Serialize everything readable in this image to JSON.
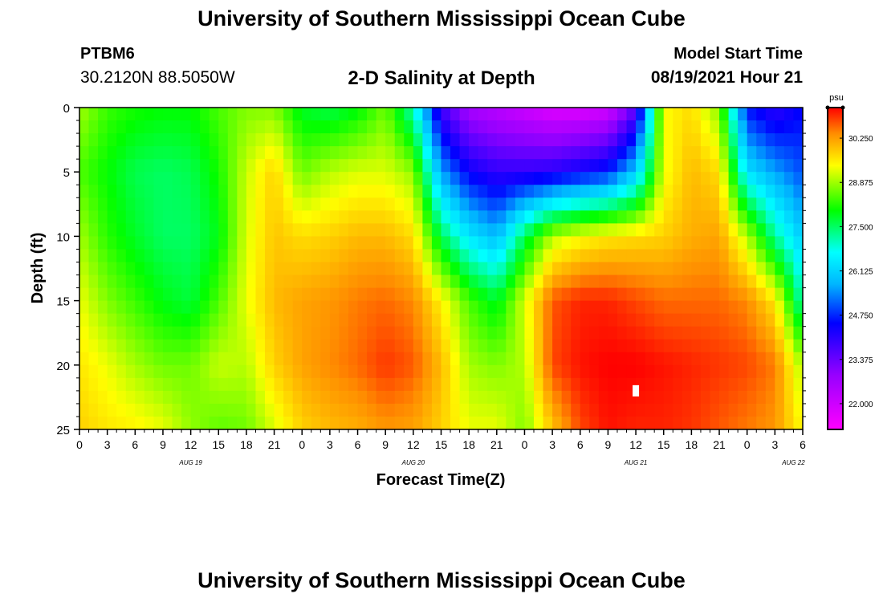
{
  "header": {
    "title": "University of Southern Mississippi Ocean Cube",
    "station_id": "PTBM6",
    "coordinates": "30.2120N  88.5050W",
    "plot_title": "2-D Salinity at Depth",
    "start_label": "Model Start Time",
    "start_value": "08/19/2021 Hour 21"
  },
  "footer": {
    "title": "University of Southern Mississippi Ocean Cube"
  },
  "chart_data": {
    "type": "heatmap",
    "title": "2-D Salinity at Depth",
    "xlabel": "Forecast Time(Z)",
    "ylabel": "Depth (ft)",
    "x_tick_labels": [
      "0",
      "3",
      "6",
      "9",
      "12",
      "15",
      "18",
      "21",
      "0",
      "3",
      "6",
      "9",
      "12",
      "15",
      "18",
      "21",
      "0",
      "3",
      "6",
      "9",
      "12",
      "15",
      "18",
      "21",
      "0",
      "3",
      "6"
    ],
    "date_labels": [
      {
        "label": "AUG 19",
        "hour": 12
      },
      {
        "label": "AUG 20",
        "hour": 36
      },
      {
        "label": "AUG 21",
        "hour": 60
      },
      {
        "label": "AUG 22",
        "hour": 77
      }
    ],
    "xlim_hours": [
      0,
      78
    ],
    "y_ticks": [
      0,
      5,
      10,
      15,
      20,
      25
    ],
    "ylim": [
      0,
      25
    ],
    "colorbar": {
      "unit": "psu",
      "labels": [
        "30.250",
        "28.875",
        "27.500",
        "26.125",
        "24.750",
        "23.375",
        "22.000"
      ],
      "range": [
        21.2,
        31.2
      ]
    },
    "salinity_columns": [
      {
        "hour": 0,
        "depth": [
          0,
          5,
          10,
          15,
          20,
          25
        ],
        "psu": [
          28.9,
          28.4,
          28.9,
          29.3,
          29.6,
          29.8
        ]
      },
      {
        "hour": 3,
        "depth": [
          0,
          5,
          10,
          15,
          20,
          25
        ],
        "psu": [
          28.3,
          28.0,
          28.2,
          28.7,
          29.3,
          29.6
        ]
      },
      {
        "hour": 6,
        "depth": [
          0,
          5,
          10,
          15,
          20,
          25
        ],
        "psu": [
          28.1,
          27.6,
          27.8,
          28.3,
          28.9,
          29.5
        ]
      },
      {
        "hour": 9,
        "depth": [
          0,
          5,
          10,
          15,
          20,
          25
        ],
        "psu": [
          28.0,
          27.5,
          27.5,
          27.9,
          28.6,
          29.3
        ]
      },
      {
        "hour": 12,
        "depth": [
          0,
          5,
          10,
          15,
          20,
          25
        ],
        "psu": [
          28.0,
          27.6,
          27.5,
          27.7,
          28.6,
          28.8
        ]
      },
      {
        "hour": 15,
        "depth": [
          0,
          5,
          10,
          15,
          20,
          25
        ],
        "psu": [
          28.4,
          28.1,
          27.9,
          28.4,
          29.1,
          28.5
        ]
      },
      {
        "hour": 18,
        "depth": [
          0,
          5,
          10,
          15,
          20,
          25
        ],
        "psu": [
          28.7,
          29.1,
          29.2,
          29.3,
          29.0,
          28.6
        ]
      },
      {
        "hour": 21,
        "depth": [
          0,
          5,
          10,
          15,
          20,
          25
        ],
        "psu": [
          28.7,
          29.8,
          29.9,
          30.0,
          29.8,
          29.2
        ]
      },
      {
        "hour": 24,
        "depth": [
          0,
          5,
          10,
          15,
          20,
          25
        ],
        "psu": [
          27.8,
          28.6,
          29.7,
          30.2,
          30.2,
          29.8
        ]
      },
      {
        "hour": 27,
        "depth": [
          0,
          5,
          10,
          15,
          20,
          25
        ],
        "psu": [
          27.6,
          29.0,
          29.8,
          30.3,
          30.4,
          30.0
        ]
      },
      {
        "hour": 30,
        "depth": [
          0,
          5,
          10,
          15,
          20,
          25
        ],
        "psu": [
          27.9,
          29.2,
          30.0,
          30.5,
          30.6,
          30.1
        ]
      },
      {
        "hour": 33,
        "depth": [
          0,
          5,
          10,
          15,
          20,
          25
        ],
        "psu": [
          28.6,
          29.2,
          30.0,
          30.6,
          30.9,
          30.3
        ]
      },
      {
        "hour": 36,
        "depth": [
          0,
          5,
          10,
          15,
          20,
          25
        ],
        "psu": [
          27.0,
          28.8,
          29.7,
          30.4,
          30.7,
          30.2
        ]
      },
      {
        "hour": 39,
        "depth": [
          0,
          5,
          10,
          15,
          20,
          25
        ],
        "psu": [
          23.8,
          25.6,
          27.6,
          29.5,
          30.0,
          29.8
        ]
      },
      {
        "hour": 42,
        "depth": [
          0,
          5,
          10,
          15,
          20,
          25
        ],
        "psu": [
          22.6,
          24.4,
          26.4,
          28.4,
          28.9,
          29.3
        ]
      },
      {
        "hour": 45,
        "depth": [
          0,
          5,
          10,
          15,
          20,
          25
        ],
        "psu": [
          22.3,
          24.0,
          25.8,
          27.8,
          28.7,
          29.3
        ]
      },
      {
        "hour": 48,
        "depth": [
          0,
          5,
          10,
          15,
          20,
          25
        ],
        "psu": [
          22.0,
          24.0,
          27.6,
          29.2,
          29.0,
          28.7
        ]
      },
      {
        "hour": 51,
        "depth": [
          0,
          5,
          10,
          15,
          20,
          25
        ],
        "psu": [
          21.7,
          24.1,
          29.0,
          30.7,
          30.8,
          29.9
        ]
      },
      {
        "hour": 54,
        "depth": [
          0,
          5,
          10,
          15,
          20,
          25
        ],
        "psu": [
          21.7,
          24.4,
          29.4,
          31.0,
          31.1,
          30.8
        ]
      },
      {
        "hour": 57,
        "depth": [
          0,
          5,
          10,
          15,
          20,
          25
        ],
        "psu": [
          21.9,
          24.7,
          29.6,
          31.0,
          31.2,
          31.1
        ]
      },
      {
        "hour": 60,
        "depth": [
          0,
          5,
          10,
          15,
          20,
          25
        ],
        "psu": [
          23.5,
          26.0,
          29.7,
          30.8,
          31.2,
          31.0
        ]
      },
      {
        "hour": 63,
        "depth": [
          0,
          5,
          10,
          15,
          20,
          25
        ],
        "psu": [
          29.4,
          29.3,
          29.8,
          30.6,
          31.1,
          31.0
        ]
      },
      {
        "hour": 66,
        "depth": [
          0,
          5,
          10,
          15,
          20,
          25
        ],
        "psu": [
          29.7,
          30.0,
          30.1,
          30.6,
          31.0,
          30.9
        ]
      },
      {
        "hour": 69,
        "depth": [
          0,
          5,
          10,
          15,
          20,
          25
        ],
        "psu": [
          28.7,
          29.7,
          30.2,
          30.6,
          30.9,
          30.7
        ]
      },
      {
        "hour": 72,
        "depth": [
          0,
          5,
          10,
          15,
          20,
          25
        ],
        "psu": [
          24.6,
          26.3,
          29.0,
          30.4,
          30.8,
          30.5
        ]
      },
      {
        "hour": 75,
        "depth": [
          0,
          5,
          10,
          15,
          20,
          25
        ],
        "psu": [
          24.0,
          25.6,
          27.2,
          29.6,
          30.5,
          30.3
        ]
      },
      {
        "hour": 78,
        "depth": [
          0,
          5,
          10,
          15,
          20,
          25
        ],
        "psu": [
          24.5,
          25.0,
          26.0,
          27.0,
          28.9,
          29.4
        ]
      }
    ],
    "marker": {
      "hour": 60,
      "depth": 22
    }
  }
}
